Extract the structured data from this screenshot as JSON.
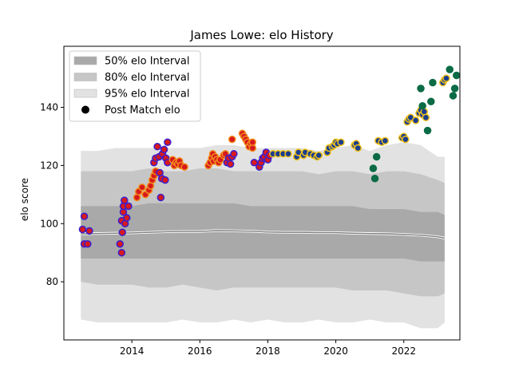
{
  "chart_data": {
    "type": "scatter",
    "title": "James Lowe: elo History",
    "xlabel": "",
    "ylabel": "elo score",
    "xlim": [
      2012.0,
      2023.65
    ],
    "ylim": [
      60,
      161
    ],
    "xticks": [
      2014,
      2016,
      2018,
      2020,
      2022
    ],
    "yticks": [
      80,
      100,
      120,
      140
    ],
    "grid": false,
    "legend_position": "top-left",
    "legend": [
      {
        "label": "50% elo Interval",
        "kind": "band",
        "color": "#a9a9a9"
      },
      {
        "label": "80% elo Interval",
        "kind": "band",
        "color": "#c6c6c6"
      },
      {
        "label": "95% elo Interval",
        "kind": "band",
        "color": "#e2e2e2"
      },
      {
        "label": "Post Match elo",
        "kind": "marker",
        "color": "#000000"
      }
    ],
    "bands": [
      {
        "name": "95% elo Interval",
        "color": "#e2e2e2",
        "x": [
          2012.5,
          2013.0,
          2013.5,
          2014.0,
          2014.5,
          2015.0,
          2015.5,
          2016.0,
          2016.5,
          2017.0,
          2017.5,
          2018.0,
          2018.5,
          2019.0,
          2019.5,
          2020.0,
          2020.5,
          2021.0,
          2021.5,
          2022.0,
          2022.5,
          2023.0,
          2023.2
        ],
        "upper": [
          125,
          125,
          126,
          126,
          126,
          126,
          126,
          126,
          127,
          127,
          126,
          126,
          126,
          126,
          125,
          126,
          127,
          125,
          127,
          128,
          127,
          123,
          123
        ],
        "lower": [
          67,
          66,
          66,
          66,
          66,
          66,
          67,
          66,
          66,
          67,
          66,
          67,
          66,
          66,
          67,
          66,
          66,
          67,
          66,
          66,
          64,
          64,
          66
        ]
      },
      {
        "name": "80% elo Interval",
        "color": "#c6c6c6",
        "x": [
          2012.5,
          2013.0,
          2013.5,
          2014.0,
          2014.5,
          2015.0,
          2015.5,
          2016.0,
          2016.5,
          2017.0,
          2017.5,
          2018.0,
          2018.5,
          2019.0,
          2019.5,
          2020.0,
          2020.5,
          2021.0,
          2021.5,
          2022.0,
          2022.5,
          2023.0,
          2023.2
        ],
        "upper": [
          118,
          118,
          118,
          118,
          119,
          118,
          118,
          119,
          119,
          118,
          118,
          118,
          118,
          118,
          117,
          118,
          118,
          117,
          118,
          118,
          117,
          115,
          114
        ],
        "lower": [
          80,
          79,
          79,
          79,
          78,
          78,
          79,
          78,
          77,
          78,
          78,
          78,
          78,
          78,
          78,
          78,
          77,
          77,
          77,
          76,
          75,
          75,
          76
        ]
      },
      {
        "name": "50% elo Interval",
        "color": "#a9a9a9",
        "x": [
          2012.5,
          2013.0,
          2013.5,
          2014.0,
          2014.5,
          2015.0,
          2015.5,
          2016.0,
          2016.5,
          2017.0,
          2017.5,
          2018.0,
          2018.5,
          2019.0,
          2019.5,
          2020.0,
          2020.5,
          2021.0,
          2021.5,
          2022.0,
          2022.5,
          2023.0,
          2023.2
        ],
        "upper": [
          106,
          106,
          106,
          106,
          107,
          107,
          107,
          107,
          107,
          107,
          106,
          106,
          106,
          106,
          106,
          106,
          106,
          105,
          105,
          105,
          104,
          104,
          103
        ],
        "lower": [
          88,
          88,
          88,
          88,
          88,
          88,
          88,
          88,
          88,
          88,
          88,
          88,
          88,
          88,
          88,
          88,
          88,
          88,
          88,
          88,
          87,
          87,
          87
        ]
      }
    ],
    "median_line": {
      "x": [
        2012.5,
        2013.0,
        2013.5,
        2014.0,
        2014.5,
        2015.0,
        2015.5,
        2016.0,
        2016.5,
        2017.0,
        2017.5,
        2018.0,
        2018.5,
        2019.0,
        2019.5,
        2020.0,
        2020.5,
        2021.0,
        2021.5,
        2022.0,
        2022.5,
        2023.0,
        2023.2
      ],
      "y": [
        96.5,
        96.6,
        96.7,
        96.8,
        97.0,
        97.2,
        97.3,
        97.3,
        97.6,
        97.5,
        97.4,
        97.1,
        97.0,
        97.0,
        96.9,
        96.9,
        96.7,
        96.6,
        96.5,
        96.3,
        96.0,
        95.5,
        95.0
      ]
    },
    "series": [
      {
        "fill": "#d7191c",
        "edge": "#3a1fd0",
        "points": [
          [
            2012.55,
            98
          ],
          [
            2012.6,
            102.5
          ],
          [
            2012.6,
            93
          ],
          [
            2012.7,
            93
          ],
          [
            2012.75,
            97.5
          ],
          [
            2013.65,
            93
          ],
          [
            2013.7,
            90
          ],
          [
            2013.7,
            101
          ],
          [
            2013.72,
            97
          ],
          [
            2013.75,
            104
          ],
          [
            2013.75,
            106
          ],
          [
            2013.78,
            108
          ],
          [
            2013.8,
            100
          ],
          [
            2013.85,
            102
          ],
          [
            2013.9,
            106
          ]
        ]
      },
      {
        "fill": "#d7191c",
        "edge": "#f28c1c",
        "points": [
          [
            2014.15,
            109
          ],
          [
            2014.2,
            111
          ],
          [
            2014.3,
            112.5
          ],
          [
            2014.4,
            110
          ],
          [
            2014.5,
            111.5
          ],
          [
            2014.55,
            113
          ],
          [
            2014.6,
            115
          ],
          [
            2014.65,
            116.5
          ],
          [
            2014.7,
            118
          ]
        ]
      },
      {
        "fill": "#d7191c",
        "edge": "#3a1fd0",
        "points": [
          [
            2014.65,
            121
          ],
          [
            2014.7,
            122.5
          ],
          [
            2014.75,
            126.5
          ],
          [
            2014.8,
            123
          ],
          [
            2014.82,
            117.5
          ],
          [
            2014.85,
            109
          ],
          [
            2014.88,
            115.5
          ],
          [
            2014.9,
            124
          ],
          [
            2014.95,
            125.5
          ],
          [
            2014.98,
            115
          ],
          [
            2015.0,
            122.5
          ],
          [
            2015.05,
            121
          ],
          [
            2015.05,
            128
          ]
        ]
      },
      {
        "fill": "#d7191c",
        "edge": "#f28c1c",
        "points": [
          [
            2015.2,
            122
          ],
          [
            2015.25,
            120
          ],
          [
            2015.3,
            121
          ],
          [
            2015.35,
            120.5
          ],
          [
            2015.4,
            121.5
          ],
          [
            2015.45,
            120
          ],
          [
            2015.55,
            119.5
          ],
          [
            2016.25,
            120
          ],
          [
            2016.3,
            121
          ],
          [
            2016.35,
            122.5
          ],
          [
            2016.38,
            124
          ],
          [
            2016.4,
            121.5
          ],
          [
            2016.45,
            123
          ],
          [
            2016.5,
            122
          ],
          [
            2016.55,
            121
          ],
          [
            2016.6,
            122
          ],
          [
            2016.7,
            123.5
          ],
          [
            2016.75,
            124
          ]
        ]
      },
      {
        "fill": "#d7191c",
        "edge": "#3a1fd0",
        "points": [
          [
            2016.8,
            121
          ],
          [
            2016.85,
            122.5
          ],
          [
            2016.9,
            120.5
          ],
          [
            2016.95,
            123
          ],
          [
            2017.0,
            124
          ]
        ]
      },
      {
        "fill": "#d7191c",
        "edge": "#f28c1c",
        "points": [
          [
            2016.95,
            129
          ],
          [
            2017.25,
            131
          ],
          [
            2017.3,
            130
          ],
          [
            2017.35,
            129
          ],
          [
            2017.4,
            128
          ],
          [
            2017.45,
            126.5
          ],
          [
            2017.5,
            127.5
          ],
          [
            2017.55,
            126
          ],
          [
            2017.55,
            128
          ]
        ]
      },
      {
        "fill": "#d7191c",
        "edge": "#3a1fd0",
        "points": [
          [
            2017.6,
            121
          ],
          [
            2017.75,
            119.5
          ],
          [
            2017.8,
            121
          ],
          [
            2017.85,
            122.5
          ],
          [
            2017.9,
            123
          ],
          [
            2017.95,
            124.5
          ],
          [
            2018.0,
            122
          ],
          [
            2018.05,
            123.5
          ]
        ]
      },
      {
        "fill": "#1a3d8f",
        "edge": "#f0c21c",
        "points": [
          [
            2018.15,
            124
          ],
          [
            2018.3,
            124
          ],
          [
            2018.45,
            124
          ],
          [
            2018.6,
            124
          ],
          [
            2018.85,
            123
          ],
          [
            2018.9,
            124.5
          ],
          [
            2019.05,
            123.5
          ],
          [
            2019.1,
            124.5
          ],
          [
            2019.25,
            124
          ],
          [
            2019.35,
            123.5
          ],
          [
            2019.45,
            123
          ],
          [
            2019.5,
            123.5
          ],
          [
            2019.75,
            124.5
          ],
          [
            2019.8,
            126
          ],
          [
            2019.9,
            126.5
          ],
          [
            2019.95,
            127
          ],
          [
            2020.0,
            128
          ],
          [
            2020.05,
            127.5
          ],
          [
            2020.15,
            128
          ],
          [
            2020.55,
            127
          ],
          [
            2020.6,
            127.5
          ],
          [
            2020.65,
            126
          ],
          [
            2021.25,
            128.5
          ],
          [
            2021.35,
            128
          ],
          [
            2021.45,
            128.5
          ],
          [
            2021.95,
            129.5
          ],
          [
            2022.0,
            130
          ],
          [
            2022.05,
            129
          ],
          [
            2022.1,
            135
          ],
          [
            2022.15,
            136
          ],
          [
            2022.2,
            136.5
          ],
          [
            2022.35,
            135.5
          ],
          [
            2022.45,
            138
          ],
          [
            2022.5,
            139
          ],
          [
            2022.55,
            137.5
          ],
          [
            2022.6,
            138.5
          ],
          [
            2022.65,
            136.5
          ],
          [
            2023.15,
            148.5
          ],
          [
            2023.2,
            149.5
          ],
          [
            2023.25,
            150
          ]
        ]
      },
      {
        "fill": "#0a6b45",
        "edge": "#0a6b45",
        "points": [
          [
            2021.1,
            119
          ],
          [
            2021.15,
            115.5
          ],
          [
            2021.2,
            123
          ],
          [
            2022.5,
            146.5
          ],
          [
            2022.55,
            140.5
          ],
          [
            2022.7,
            132
          ],
          [
            2022.8,
            142
          ],
          [
            2022.85,
            148.5
          ],
          [
            2023.35,
            153
          ],
          [
            2023.45,
            144
          ],
          [
            2023.5,
            146.5
          ],
          [
            2023.55,
            151
          ]
        ]
      }
    ]
  }
}
